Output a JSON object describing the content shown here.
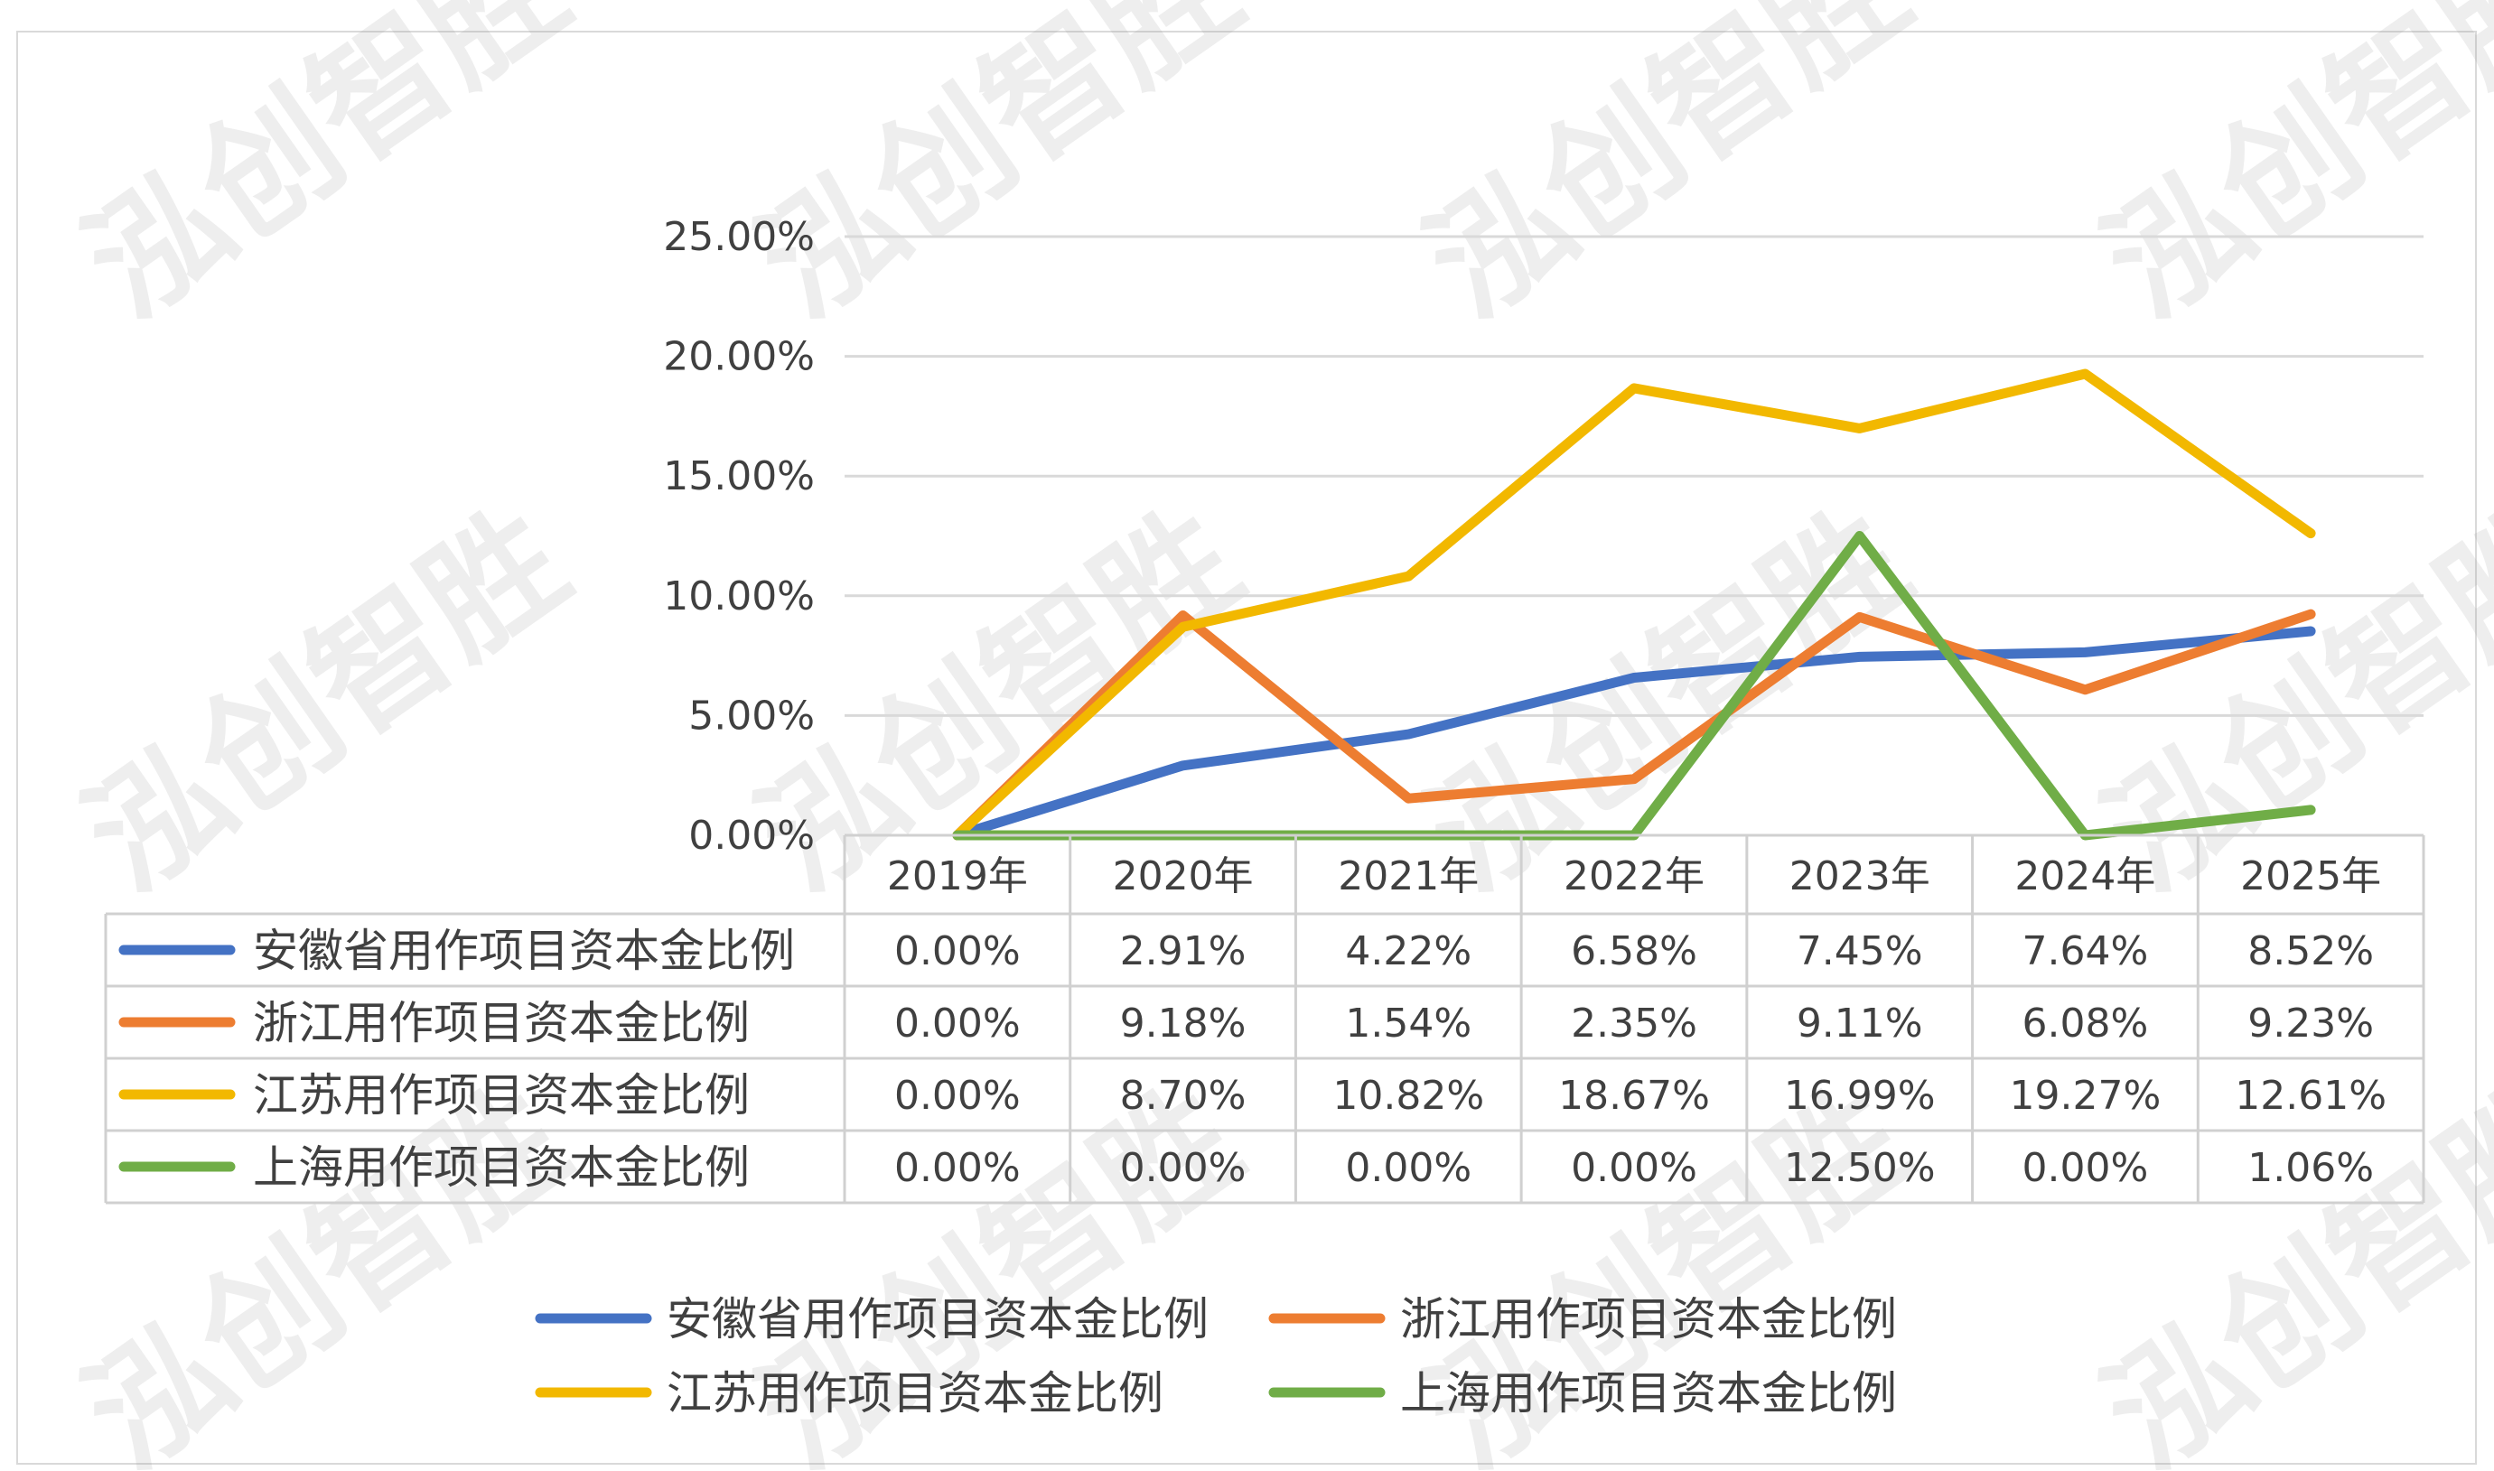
{
  "watermark": "泓创智胜",
  "chart_data": {
    "type": "line",
    "title": "",
    "xlabel": "",
    "ylabel": "",
    "categories": [
      "2019年",
      "2020年",
      "2021年",
      "2022年",
      "2023年",
      "2024年",
      "2025年"
    ],
    "ylim": [
      0,
      25
    ],
    "yticks": [
      "0.00%",
      "5.00%",
      "10.00%",
      "15.00%",
      "20.00%",
      "25.00%"
    ],
    "grid": true,
    "legend_placement": "bottom",
    "series": [
      {
        "name": "安徽省用作项目资本金比例",
        "color": "#4472C4",
        "values": [
          0.0,
          2.91,
          4.22,
          6.58,
          7.45,
          7.64,
          8.52
        ],
        "labels": [
          "0.00%",
          "2.91%",
          "4.22%",
          "6.58%",
          "7.45%",
          "7.64%",
          "8.52%"
        ]
      },
      {
        "name": "浙江用作项目资本金比例",
        "color": "#ED7D31",
        "values": [
          0.0,
          9.18,
          1.54,
          2.35,
          9.11,
          6.08,
          9.23
        ],
        "labels": [
          "0.00%",
          "9.18%",
          "1.54%",
          "2.35%",
          "9.11%",
          "6.08%",
          "9.23%"
        ]
      },
      {
        "name": "江苏用作项目资本金比例",
        "color": "#F2B800",
        "values": [
          0.0,
          8.7,
          10.82,
          18.67,
          16.99,
          19.27,
          12.61
        ],
        "labels": [
          "0.00%",
          "8.70%",
          "10.82%",
          "18.67%",
          "16.99%",
          "19.27%",
          "12.61%"
        ]
      },
      {
        "name": "上海用作项目资本金比例",
        "color": "#70AD47",
        "values": [
          0.0,
          0.0,
          0.0,
          0.0,
          12.5,
          0.0,
          1.06
        ],
        "labels": [
          "0.00%",
          "0.00%",
          "0.00%",
          "0.00%",
          "12.50%",
          "0.00%",
          "1.06%"
        ]
      }
    ]
  }
}
